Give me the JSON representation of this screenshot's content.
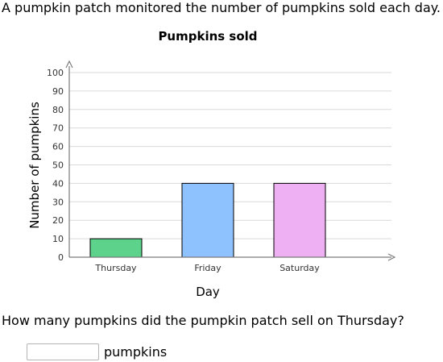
{
  "intro": "A pumpkin patch monitored the number of pumpkins sold each day.",
  "question": "How many pumpkins did the pumpkin patch sell on Thursday?",
  "answer": {
    "value": "",
    "placeholder": "",
    "unit": "pumpkins"
  },
  "chart_data": {
    "type": "bar",
    "title": "Pumpkins sold",
    "xlabel": "Day",
    "ylabel": "Number of pumpkins",
    "categories": [
      "Thursday",
      "Friday",
      "Saturday"
    ],
    "values": [
      10,
      40,
      40
    ],
    "colors": [
      "#5dd28a",
      "#8ec2ff",
      "#eeb0f3"
    ],
    "ylim": [
      0,
      100
    ],
    "yticks": [
      0,
      10,
      20,
      30,
      40,
      50,
      60,
      70,
      80,
      90,
      100
    ],
    "grid": true,
    "legend": "none"
  }
}
